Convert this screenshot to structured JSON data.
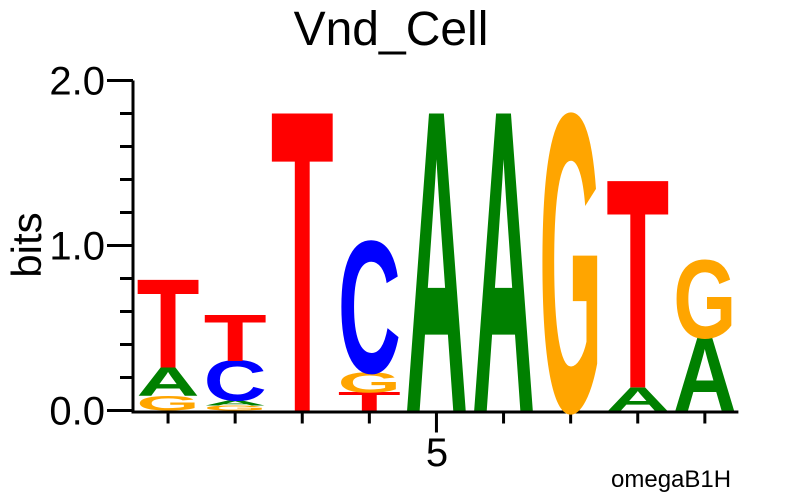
{
  "page": {
    "background": "#ffffff",
    "text_color": "#000000"
  },
  "chart_data": {
    "type": "sequence_logo",
    "title": "Vnd_Cell",
    "ylabel": "bits",
    "ylim": [
      0,
      2.0
    ],
    "ytick_values": [
      0,
      1,
      2
    ],
    "ytick_labels": [
      "0.0",
      "1.0",
      "2.0"
    ],
    "ytick_minor_values": [
      0.2,
      0.4,
      0.6,
      0.8,
      1.2,
      1.4,
      1.6,
      1.8
    ],
    "xtick": {
      "label": "5",
      "position": 5
    },
    "n_positions": 9,
    "consensus": "TTTCAAGTG",
    "credit": "omegaB1H",
    "axis_color": "#000000",
    "grid": "off",
    "base_colors": {
      "A": "#008000",
      "C": "#0000ff",
      "G": "#ffa500",
      "T": "#ff0000"
    },
    "positions": [
      {
        "position": 1,
        "stack": [
          {
            "base": "G",
            "bits": 0.09
          },
          {
            "base": "A",
            "bits": 0.17
          },
          {
            "base": "T",
            "bits": 0.53
          }
        ]
      },
      {
        "position": 2,
        "stack": [
          {
            "base": "G",
            "bits": 0.03
          },
          {
            "base": "A",
            "bits": 0.03
          },
          {
            "base": "C",
            "bits": 0.24
          },
          {
            "base": "T",
            "bits": 0.28
          }
        ]
      },
      {
        "position": 3,
        "stack": [
          {
            "base": "T",
            "bits": 1.8
          }
        ]
      },
      {
        "position": 4,
        "stack": [
          {
            "base": "T",
            "bits": 0.11
          },
          {
            "base": "G",
            "bits": 0.12
          },
          {
            "base": "C",
            "bits": 0.79
          }
        ]
      },
      {
        "position": 5,
        "stack": [
          {
            "base": "A",
            "bits": 1.8
          }
        ]
      },
      {
        "position": 6,
        "stack": [
          {
            "base": "A",
            "bits": 1.8
          }
        ]
      },
      {
        "position": 7,
        "stack": [
          {
            "base": "G",
            "bits": 1.78
          }
        ]
      },
      {
        "position": 8,
        "stack": [
          {
            "base": "A",
            "bits": 0.14
          },
          {
            "base": "T",
            "bits": 1.25
          }
        ]
      },
      {
        "position": 9,
        "stack": [
          {
            "base": "A",
            "bits": 0.44
          },
          {
            "base": "G",
            "bits": 0.47
          }
        ]
      }
    ]
  }
}
